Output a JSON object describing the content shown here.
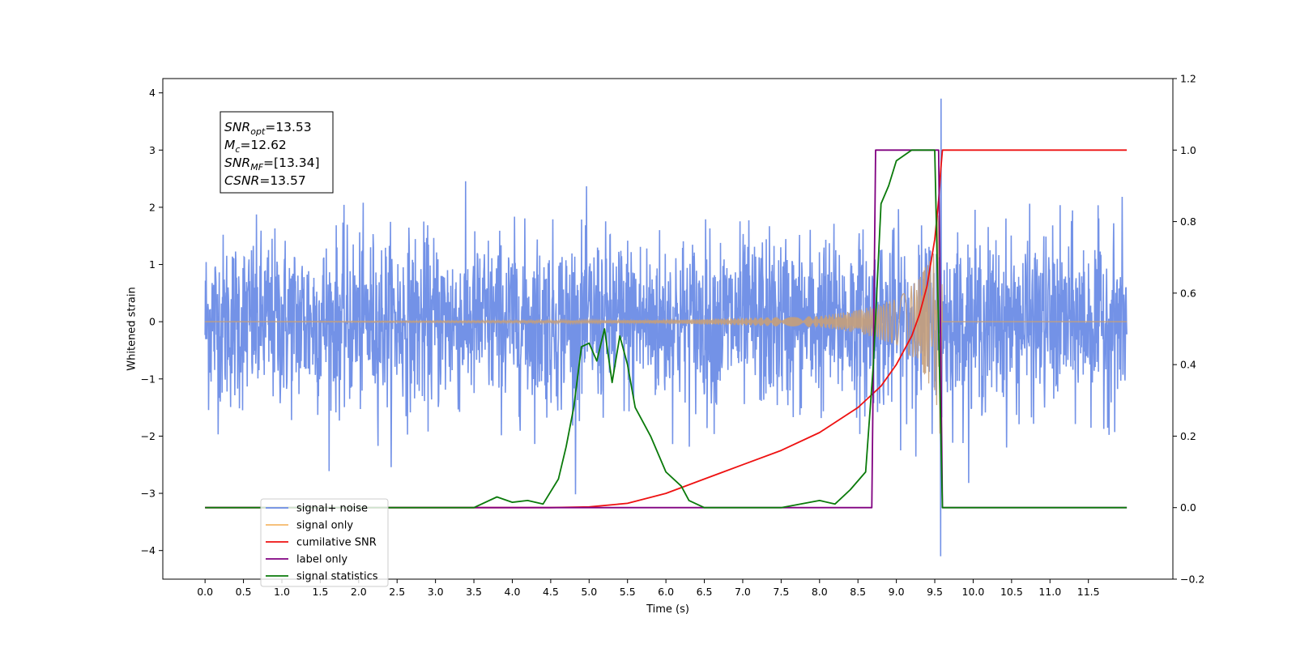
{
  "chart_data": {
    "type": "line",
    "xlabel": "Time (s)",
    "ylabel": "Whitened strain",
    "xlim": [
      -0.55,
      12.6
    ],
    "ylim": [
      -4.5,
      4.25
    ],
    "y2lim": [
      -0.2,
      1.2
    ],
    "x_ticks": [
      "0.0",
      "0.5",
      "1.0",
      "1.5",
      "2.0",
      "2.5",
      "3.0",
      "3.5",
      "4.0",
      "4.5",
      "5.0",
      "5.5",
      "6.0",
      "6.5",
      "7.0",
      "7.5",
      "8.0",
      "8.5",
      "9.0",
      "9.5",
      "10.0",
      "10.5",
      "11.0",
      "11.5"
    ],
    "y_ticks": [
      "4",
      "3",
      "2",
      "1",
      "0",
      "−1",
      "−2",
      "−3",
      "−4"
    ],
    "y2_ticks": [
      "1.2",
      "1.0",
      "0.8",
      "0.6",
      "0.4",
      "0.2",
      "0.0",
      "−0.2"
    ],
    "grid": false,
    "legend_position": "lower-left",
    "annotation": [
      {
        "main": "SNR",
        "sub": "opt",
        "value": "=13.53"
      },
      {
        "main": "M",
        "sub": "c",
        "value": "=12.62"
      },
      {
        "main": "SNR",
        "sub": "MF",
        "value": "=[13.34]"
      },
      {
        "main": "CSNR",
        "sub": "",
        "value": "=13.57"
      }
    ],
    "series": [
      {
        "name": "signal+ noise",
        "axis": "left",
        "color": "#6b8ce6",
        "kind": "noise",
        "x_range": [
          0,
          12
        ],
        "noise_sigma": 0.75,
        "spike_max": 3.9
      },
      {
        "name": "signal only",
        "axis": "left",
        "color": "#f5b86a",
        "kind": "chirp",
        "x_range": [
          0,
          9.6
        ],
        "envelope": [
          [
            0,
            0.0
          ],
          [
            6,
            0.03
          ],
          [
            8,
            0.1
          ],
          [
            8.5,
            0.2
          ],
          [
            9,
            0.4
          ],
          [
            9.3,
            0.75
          ],
          [
            9.5,
            1.3
          ],
          [
            9.58,
            2.7
          ],
          [
            9.6,
            0.0
          ]
        ]
      },
      {
        "name": "cumilative SNR",
        "axis": "right",
        "color": "#ee1111",
        "x": [
          0,
          4.5,
          5.0,
          5.5,
          6.0,
          6.5,
          7.0,
          7.5,
          8.0,
          8.5,
          8.8,
          9.0,
          9.2,
          9.3,
          9.4,
          9.5,
          9.55,
          9.58,
          9.6,
          12.0
        ],
        "values": [
          0,
          0,
          0.002,
          0.012,
          0.04,
          0.08,
          0.12,
          0.16,
          0.21,
          0.28,
          0.34,
          0.4,
          0.48,
          0.54,
          0.62,
          0.75,
          0.86,
          0.95,
          1.0,
          1.0
        ]
      },
      {
        "name": "label only",
        "axis": "right",
        "color": "#800080",
        "x": [
          0,
          8.68,
          8.73,
          9.55,
          9.6,
          12.0
        ],
        "values": [
          0,
          0,
          1,
          1,
          0,
          0
        ]
      },
      {
        "name": "signal statistics",
        "axis": "right",
        "color": "#0a7a0a",
        "x": [
          0,
          3.5,
          3.8,
          4.0,
          4.2,
          4.4,
          4.6,
          4.7,
          4.8,
          4.9,
          5.0,
          5.1,
          5.2,
          5.3,
          5.4,
          5.5,
          5.6,
          5.8,
          6.0,
          6.2,
          6.3,
          6.5,
          7.5,
          8.0,
          8.2,
          8.4,
          8.6,
          8.7,
          8.8,
          8.9,
          9.0,
          9.2,
          9.4,
          9.5,
          9.55,
          9.6,
          12.0
        ],
        "values": [
          0,
          0,
          0.03,
          0.015,
          0.02,
          0.01,
          0.08,
          0.17,
          0.28,
          0.45,
          0.46,
          0.41,
          0.5,
          0.35,
          0.48,
          0.4,
          0.28,
          0.2,
          0.1,
          0.06,
          0.02,
          0.0,
          0.0,
          0.02,
          0.01,
          0.05,
          0.1,
          0.4,
          0.85,
          0.9,
          0.97,
          1.0,
          1.0,
          1.0,
          0.5,
          0.0,
          0.0
        ]
      }
    ]
  },
  "legend": {
    "items": [
      {
        "label": "signal+ noise",
        "color": "#6b8ce6"
      },
      {
        "label": "signal only",
        "color": "#f5b86a"
      },
      {
        "label": "cumilative SNR",
        "color": "#ee1111"
      },
      {
        "label": "label only",
        "color": "#800080"
      },
      {
        "label": "signal statistics",
        "color": "#0a7a0a"
      }
    ]
  }
}
